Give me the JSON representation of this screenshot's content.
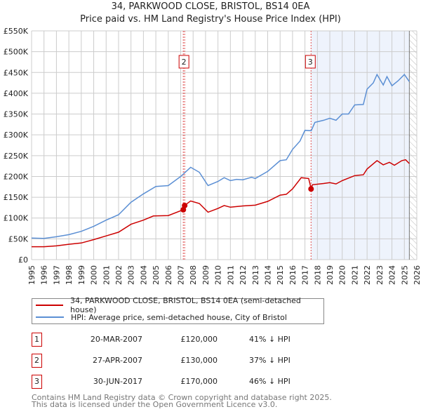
{
  "chart_data": {
    "type": "line",
    "title": "34, PARKWOOD CLOSE, BRISTOL, BS14 0EA",
    "subtitle": "Price paid vs. HM Land Registry's House Price Index (HPI)",
    "xlim": [
      1995,
      2026
    ],
    "ylim": [
      0,
      550000
    ],
    "x_ticks": [
      "1995",
      "1996",
      "1997",
      "1998",
      "1999",
      "2000",
      "2001",
      "2002",
      "2003",
      "2004",
      "2005",
      "2006",
      "2007",
      "2008",
      "2009",
      "2010",
      "2011",
      "2012",
      "2013",
      "2014",
      "2015",
      "2016",
      "2017",
      "2018",
      "2019",
      "2020",
      "2021",
      "2022",
      "2023",
      "2024",
      "2025",
      "2026"
    ],
    "y_ticks": [
      {
        "v": 0,
        "label": "£0"
      },
      {
        "v": 50000,
        "label": "£50K"
      },
      {
        "v": 100000,
        "label": "£100K"
      },
      {
        "v": 150000,
        "label": "£150K"
      },
      {
        "v": 200000,
        "label": "£200K"
      },
      {
        "v": 250000,
        "label": "£250K"
      },
      {
        "v": 300000,
        "label": "£300K"
      },
      {
        "v": 350000,
        "label": "£350K"
      },
      {
        "v": 400000,
        "label": "£400K"
      },
      {
        "v": 450000,
        "label": "£450K"
      },
      {
        "v": 500000,
        "label": "£500K"
      },
      {
        "v": 550000,
        "label": "£550K"
      }
    ],
    "grid": true,
    "shaded_region": [
      2017.5,
      2025.4
    ],
    "forecast_hatch_from": 2025.4,
    "series": [
      {
        "name": "34, PARKWOOD CLOSE, BRISTOL, BS14 0EA (semi-detached house)",
        "color": "#cc0000",
        "x": [
          1995,
          1996,
          1997,
          1998,
          1999,
          2000,
          2001,
          2002,
          2003,
          2004,
          2004.8,
          2006,
          2007.2,
          2007.3,
          2007.8,
          2008.5,
          2009.2,
          2010,
          2010.5,
          2011,
          2012,
          2013,
          2014,
          2015,
          2015.5,
          2016,
          2016.7,
          2017.3,
          2017.5,
          2017.6,
          2018.5,
          2019,
          2019.5,
          2020,
          2021,
          2021.7,
          2022,
          2022.8,
          2023.3,
          2023.8,
          2024.2,
          2024.8,
          2025.1,
          2025.4
        ],
        "y": [
          31000,
          31000,
          33000,
          37000,
          40000,
          48000,
          57000,
          66000,
          85000,
          95000,
          105000,
          106000,
          120000,
          130000,
          141000,
          135000,
          114000,
          123000,
          130000,
          126000,
          129000,
          131000,
          140000,
          155000,
          157000,
          170000,
          197000,
          195000,
          170000,
          180000,
          183000,
          185000,
          182000,
          190000,
          202000,
          204000,
          218000,
          238000,
          228000,
          234000,
          227000,
          238000,
          240000,
          231000
        ]
      },
      {
        "name": "HPI: Average price, semi-detached house, City of Bristol",
        "color": "#5b8fd4",
        "x": [
          1995,
          1996,
          1997,
          1998,
          1999,
          2000,
          2001,
          2002,
          2003,
          2004,
          2005,
          2006,
          2007,
          2007.8,
          2008.5,
          2009.2,
          2010,
          2010.5,
          2011,
          2011.5,
          2012,
          2012.7,
          2013,
          2014,
          2015,
          2015.5,
          2016,
          2016.6,
          2017,
          2017.5,
          2017.8,
          2018.5,
          2019,
          2019.5,
          2020,
          2020.5,
          2021,
          2021.7,
          2022,
          2022.5,
          2022.8,
          2023.3,
          2023.6,
          2024,
          2024.5,
          2025,
          2025.4
        ],
        "y": [
          52000,
          51000,
          55000,
          60000,
          68000,
          80000,
          95000,
          108000,
          138000,
          158000,
          176000,
          178000,
          200000,
          222000,
          210000,
          178000,
          188000,
          197000,
          190000,
          193000,
          192000,
          198000,
          195000,
          212000,
          238000,
          240000,
          265000,
          285000,
          311000,
          310000,
          330000,
          335000,
          340000,
          335000,
          350000,
          350000,
          372000,
          373000,
          410000,
          425000,
          445000,
          420000,
          440000,
          418000,
          430000,
          445000,
          428000
        ]
      }
    ],
    "transactions": [
      {
        "id": "1",
        "x": 2007.21,
        "price": 120000
      },
      {
        "id": "2",
        "x": 2007.32,
        "price": 130000
      },
      {
        "id": "3",
        "x": 2017.49,
        "price": 170000
      }
    ],
    "marker_boxes": [
      {
        "id": "2",
        "x": 2007.32
      },
      {
        "id": "3",
        "x": 2017.49
      }
    ]
  },
  "title_line1": "34, PARKWOOD CLOSE, BRISTOL, BS14 0EA",
  "title_line2": "Price paid vs. HM Land Registry's House Price Index (HPI)",
  "legend": {
    "red": "34, PARKWOOD CLOSE, BRISTOL, BS14 0EA (semi-detached house)",
    "blue": "HPI: Average price, semi-detached house, City of Bristol"
  },
  "table": [
    {
      "num": "1",
      "date": "20-MAR-2007",
      "price": "£120,000",
      "hpi": "41% ↓ HPI"
    },
    {
      "num": "2",
      "date": "27-APR-2007",
      "price": "£130,000",
      "hpi": "37% ↓ HPI"
    },
    {
      "num": "3",
      "date": "30-JUN-2017",
      "price": "£170,000",
      "hpi": "46% ↓ HPI"
    }
  ],
  "footer": {
    "line1": "Contains HM Land Registry data © Crown copyright and database right 2025.",
    "line2": "This data is licensed under the Open Government Licence v3.0."
  },
  "colors": {
    "red": "#cc0000",
    "blue": "#5b8fd4",
    "shade": "#eef3fc",
    "grid": "#cccccc"
  }
}
